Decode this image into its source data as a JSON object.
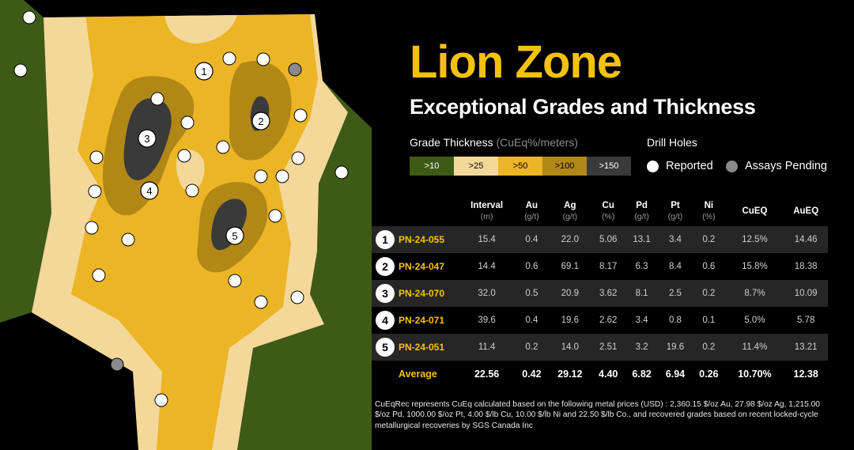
{
  "title": "Lion Zone",
  "subtitle": "Exceptional Grades and Thickness",
  "legend": {
    "title": "Grade Thickness",
    "unit": "(CuEq%/meters)",
    "classes": [
      {
        "label": ">10",
        "color": "#3e5a17",
        "text_color": "#ffffff"
      },
      {
        "label": ">25",
        "color": "#f3d89a",
        "text_color": "#000000"
      },
      {
        "label": ">50",
        "color": "#ecb526",
        "text_color": "#000000"
      },
      {
        "label": ">100",
        "color": "#b18716",
        "text_color": "#000000"
      },
      {
        "label": ">150",
        "color": "#3a3a3a",
        "text_color": "#ffffff"
      }
    ]
  },
  "drill_holes": {
    "title": "Drill Holes",
    "reported": {
      "label": "Reported",
      "color": "#ffffff"
    },
    "pending": {
      "label": "Assays Pending",
      "color": "#8a8a8a"
    }
  },
  "map": {
    "labels": [
      "1",
      "2",
      "3",
      "4",
      "5"
    ]
  },
  "table": {
    "columns": [
      {
        "name": "Interval",
        "unit": "(m)"
      },
      {
        "name": "Au",
        "unit": "(g/t)"
      },
      {
        "name": "Ag",
        "unit": "(g/t)"
      },
      {
        "name": "Cu",
        "unit": "(%)"
      },
      {
        "name": "Pd",
        "unit": "(g/t)"
      },
      {
        "name": "Pt",
        "unit": "(g/t)"
      },
      {
        "name": "Ni",
        "unit": "(%)"
      },
      {
        "name": "CuEQ",
        "unit": ""
      },
      {
        "name": "AuEQ",
        "unit": ""
      }
    ],
    "rows": [
      {
        "num": "1",
        "hole": "PN-24-055",
        "values": [
          "15.4",
          "0.4",
          "22.0",
          "5.06",
          "13.1",
          "3.4",
          "0.2",
          "12.5%",
          "14.46"
        ]
      },
      {
        "num": "2",
        "hole": "PN-24-047",
        "values": [
          "14.4",
          "0.6",
          "69.1",
          "8.17",
          "6.3",
          "8.4",
          "0.6",
          "15.8%",
          "18.38"
        ]
      },
      {
        "num": "3",
        "hole": "PN-24-070",
        "values": [
          "32.0",
          "0.5",
          "20.9",
          "3.62",
          "8.1",
          "2.5",
          "0.2",
          "8.7%",
          "10.09"
        ]
      },
      {
        "num": "4",
        "hole": "PN-24-071",
        "values": [
          "39.6",
          "0.4",
          "19.6",
          "2.62",
          "3.4",
          "0.8",
          "0.1",
          "5.0%",
          "5.78"
        ]
      },
      {
        "num": "5",
        "hole": "PN-24-051",
        "values": [
          "11.4",
          "0.2",
          "14.0",
          "2.51",
          "3.2",
          "19.6",
          "0.2",
          "11.4%",
          "13.21"
        ]
      }
    ],
    "average": {
      "label": "Average",
      "values": [
        "22.56",
        "0.42",
        "29.12",
        "4.40",
        "6.82",
        "6.94",
        "0.26",
        "10.70%",
        "12.38"
      ]
    }
  },
  "footnote": "CuEqRec represents CuEq calculated based on the following metal prices (USD) : 2,360.15 $/oz Au, 27.98 $/oz Ag, 1,215.00 $/oz Pd, 1000.00 $/oz Pt, 4.00 $/lb Cu, 10.00 $/lb Ni and 22.50 $/lb Co., and recovered grades based on recent locked-cycle metallurgical recoveries by SGS Canada Inc"
}
